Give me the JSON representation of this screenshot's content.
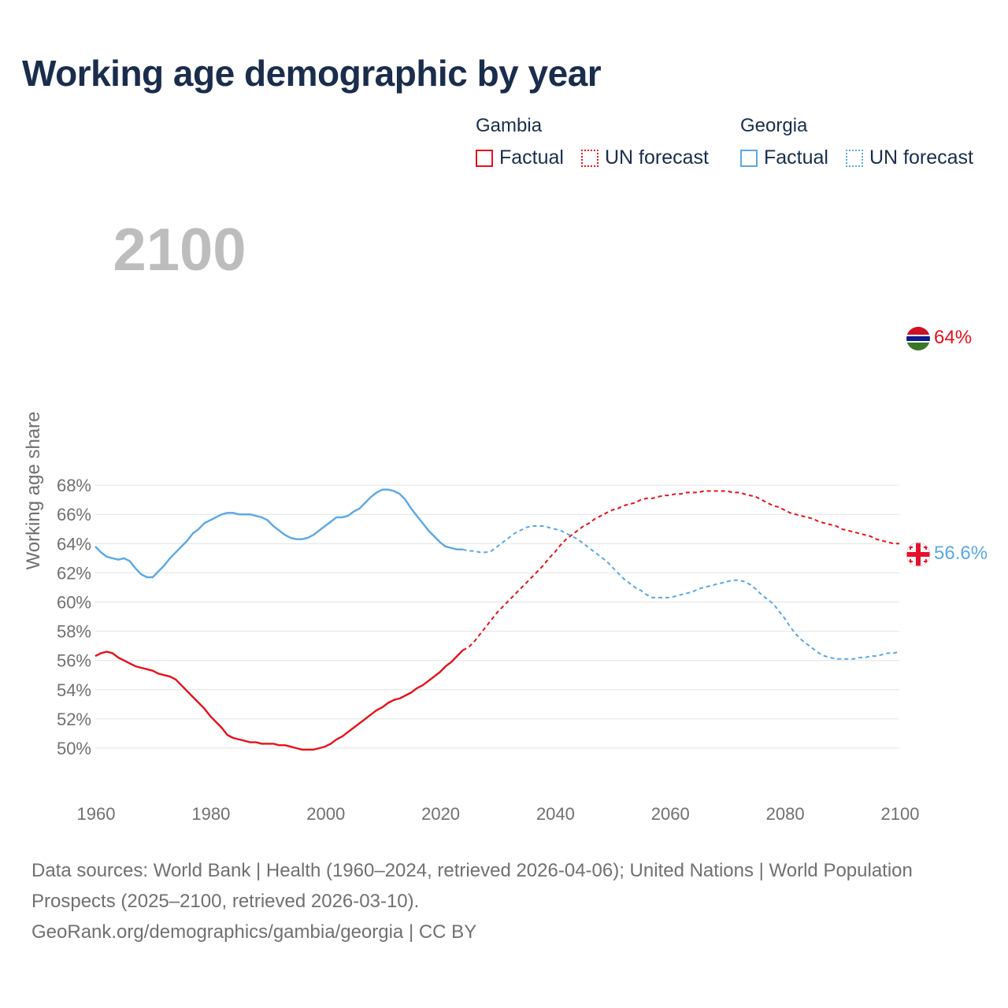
{
  "title": "Working age demographic by year",
  "legend": {
    "gambia": {
      "name": "Gambia",
      "factual": "Factual",
      "forecast": "UN forecast"
    },
    "georgia": {
      "name": "Georgia",
      "factual": "Factual",
      "forecast": "UN forecast"
    }
  },
  "colors": {
    "gambia": "#e8101a",
    "georgia": "#5aa8e6",
    "grid": "#e4e4e4",
    "axis_text": "#707070",
    "year_watermark": "#bdbdbd"
  },
  "year_watermark": "2100",
  "end_labels": {
    "gambia": "64%",
    "georgia": "56.6%"
  },
  "sources": {
    "line1": "Data sources: World Bank | Health (1960–2024, retrieved 2026-04-06); United Nations | World Population Prospects (2025–2100, retrieved 2026-03-10).",
    "line2": "GeoRank.org/demographics/gambia/georgia | CC BY"
  },
  "chart_data": {
    "type": "line",
    "title": "Working age demographic by year",
    "xlabel": "",
    "ylabel": "Working age share",
    "xlim": [
      1960,
      2100
    ],
    "ylim": [
      49,
      68
    ],
    "x_ticks": [
      1960,
      1980,
      2000,
      2020,
      2040,
      2060,
      2080,
      2100
    ],
    "y_ticks": [
      50,
      52,
      54,
      56,
      58,
      60,
      62,
      64,
      66,
      68
    ],
    "y_tick_labels": [
      "50%",
      "52%",
      "54%",
      "56%",
      "58%",
      "60%",
      "62%",
      "64%",
      "66%",
      "68%"
    ],
    "x_tick_labels": [
      "1960",
      "1980",
      "2000",
      "2020",
      "2040",
      "2060",
      "2080",
      "2100"
    ],
    "grid": true,
    "series": [
      {
        "name": "Gambia",
        "kind": "Factual",
        "color": "#e8101a",
        "dashed": false,
        "points": [
          [
            1960,
            56.3
          ],
          [
            1961,
            56.5
          ],
          [
            1962,
            56.6
          ],
          [
            1963,
            56.5
          ],
          [
            1964,
            56.2
          ],
          [
            1965,
            56.0
          ],
          [
            1966,
            55.8
          ],
          [
            1967,
            55.6
          ],
          [
            1968,
            55.5
          ],
          [
            1969,
            55.4
          ],
          [
            1970,
            55.3
          ],
          [
            1971,
            55.1
          ],
          [
            1972,
            55.0
          ],
          [
            1973,
            54.9
          ],
          [
            1974,
            54.7
          ],
          [
            1975,
            54.3
          ],
          [
            1976,
            53.9
          ],
          [
            1977,
            53.5
          ],
          [
            1978,
            53.1
          ],
          [
            1979,
            52.7
          ],
          [
            1980,
            52.2
          ],
          [
            1981,
            51.8
          ],
          [
            1982,
            51.4
          ],
          [
            1983,
            50.9
          ],
          [
            1984,
            50.7
          ],
          [
            1985,
            50.6
          ],
          [
            1986,
            50.5
          ],
          [
            1987,
            50.4
          ],
          [
            1988,
            50.4
          ],
          [
            1989,
            50.3
          ],
          [
            1990,
            50.3
          ],
          [
            1991,
            50.3
          ],
          [
            1992,
            50.2
          ],
          [
            1993,
            50.2
          ],
          [
            1994,
            50.1
          ],
          [
            1995,
            50.0
          ],
          [
            1996,
            49.9
          ],
          [
            1997,
            49.9
          ],
          [
            1998,
            49.9
          ],
          [
            1999,
            50.0
          ],
          [
            2000,
            50.1
          ],
          [
            2001,
            50.3
          ],
          [
            2002,
            50.6
          ],
          [
            2003,
            50.8
          ],
          [
            2004,
            51.1
          ],
          [
            2005,
            51.4
          ],
          [
            2006,
            51.7
          ],
          [
            2007,
            52.0
          ],
          [
            2008,
            52.3
          ],
          [
            2009,
            52.6
          ],
          [
            2010,
            52.8
          ],
          [
            2011,
            53.1
          ],
          [
            2012,
            53.3
          ],
          [
            2013,
            53.4
          ],
          [
            2014,
            53.6
          ],
          [
            2015,
            53.8
          ],
          [
            2016,
            54.1
          ],
          [
            2017,
            54.3
          ],
          [
            2018,
            54.6
          ],
          [
            2019,
            54.9
          ],
          [
            2020,
            55.2
          ],
          [
            2021,
            55.6
          ],
          [
            2022,
            55.9
          ],
          [
            2023,
            56.3
          ],
          [
            2024,
            56.7
          ]
        ]
      },
      {
        "name": "Gambia",
        "kind": "UN forecast",
        "color": "#e8101a",
        "dashed": true,
        "points": [
          [
            2024,
            56.7
          ],
          [
            2025,
            56.9
          ],
          [
            2026,
            57.3
          ],
          [
            2027,
            57.8
          ],
          [
            2028,
            58.3
          ],
          [
            2029,
            58.8
          ],
          [
            2030,
            59.3
          ],
          [
            2031,
            59.7
          ],
          [
            2032,
            60.1
          ],
          [
            2033,
            60.5
          ],
          [
            2034,
            60.9
          ],
          [
            2035,
            61.3
          ],
          [
            2036,
            61.7
          ],
          [
            2037,
            62.1
          ],
          [
            2038,
            62.5
          ],
          [
            2039,
            63.0
          ],
          [
            2040,
            63.4
          ],
          [
            2041,
            63.9
          ],
          [
            2042,
            64.3
          ],
          [
            2043,
            64.6
          ],
          [
            2044,
            64.9
          ],
          [
            2045,
            65.2
          ],
          [
            2046,
            65.4
          ],
          [
            2047,
            65.7
          ],
          [
            2048,
            65.9
          ],
          [
            2049,
            66.1
          ],
          [
            2050,
            66.3
          ],
          [
            2051,
            66.4
          ],
          [
            2052,
            66.6
          ],
          [
            2053,
            66.7
          ],
          [
            2054,
            66.8
          ],
          [
            2055,
            67.0
          ],
          [
            2056,
            67.1
          ],
          [
            2057,
            67.1
          ],
          [
            2058,
            67.2
          ],
          [
            2059,
            67.3
          ],
          [
            2060,
            67.3
          ],
          [
            2061,
            67.4
          ],
          [
            2062,
            67.4
          ],
          [
            2063,
            67.5
          ],
          [
            2064,
            67.5
          ],
          [
            2065,
            67.5
          ],
          [
            2066,
            67.6
          ],
          [
            2067,
            67.6
          ],
          [
            2068,
            67.6
          ],
          [
            2069,
            67.6
          ],
          [
            2070,
            67.6
          ],
          [
            2071,
            67.5
          ],
          [
            2072,
            67.5
          ],
          [
            2073,
            67.4
          ],
          [
            2074,
            67.3
          ],
          [
            2075,
            67.2
          ],
          [
            2076,
            67.0
          ],
          [
            2077,
            66.8
          ],
          [
            2078,
            66.6
          ],
          [
            2079,
            66.5
          ],
          [
            2080,
            66.3
          ],
          [
            2081,
            66.1
          ],
          [
            2082,
            66.0
          ],
          [
            2083,
            65.9
          ],
          [
            2084,
            65.8
          ],
          [
            2085,
            65.7
          ],
          [
            2086,
            65.5
          ],
          [
            2087,
            65.4
          ],
          [
            2088,
            65.3
          ],
          [
            2089,
            65.2
          ],
          [
            2090,
            65.0
          ],
          [
            2091,
            64.9
          ],
          [
            2092,
            64.8
          ],
          [
            2093,
            64.7
          ],
          [
            2094,
            64.6
          ],
          [
            2095,
            64.5
          ],
          [
            2096,
            64.3
          ],
          [
            2097,
            64.2
          ],
          [
            2098,
            64.1
          ],
          [
            2099,
            64.0
          ],
          [
            2100,
            64.0
          ]
        ]
      },
      {
        "name": "Georgia",
        "kind": "Factual",
        "color": "#5aa8e6",
        "dashed": false,
        "points": [
          [
            1960,
            63.8
          ],
          [
            1961,
            63.4
          ],
          [
            1962,
            63.1
          ],
          [
            1963,
            63.0
          ],
          [
            1964,
            62.9
          ],
          [
            1965,
            63.0
          ],
          [
            1966,
            62.8
          ],
          [
            1967,
            62.3
          ],
          [
            1968,
            61.9
          ],
          [
            1969,
            61.7
          ],
          [
            1970,
            61.7
          ],
          [
            1971,
            62.1
          ],
          [
            1972,
            62.5
          ],
          [
            1973,
            63.0
          ],
          [
            1974,
            63.4
          ],
          [
            1975,
            63.8
          ],
          [
            1976,
            64.2
          ],
          [
            1977,
            64.7
          ],
          [
            1978,
            65.0
          ],
          [
            1979,
            65.4
          ],
          [
            1980,
            65.6
          ],
          [
            1981,
            65.8
          ],
          [
            1982,
            66.0
          ],
          [
            1983,
            66.1
          ],
          [
            1984,
            66.1
          ],
          [
            1985,
            66.0
          ],
          [
            1986,
            66.0
          ],
          [
            1987,
            66.0
          ],
          [
            1988,
            65.9
          ],
          [
            1989,
            65.8
          ],
          [
            1990,
            65.6
          ],
          [
            1991,
            65.2
          ],
          [
            1992,
            64.9
          ],
          [
            1993,
            64.6
          ],
          [
            1994,
            64.4
          ],
          [
            1995,
            64.3
          ],
          [
            1996,
            64.3
          ],
          [
            1997,
            64.4
          ],
          [
            1998,
            64.6
          ],
          [
            1999,
            64.9
          ],
          [
            2000,
            65.2
          ],
          [
            2001,
            65.5
          ],
          [
            2002,
            65.8
          ],
          [
            2003,
            65.8
          ],
          [
            2004,
            65.9
          ],
          [
            2005,
            66.2
          ],
          [
            2006,
            66.4
          ],
          [
            2007,
            66.8
          ],
          [
            2008,
            67.2
          ],
          [
            2009,
            67.5
          ],
          [
            2010,
            67.7
          ],
          [
            2011,
            67.7
          ],
          [
            2012,
            67.6
          ],
          [
            2013,
            67.4
          ],
          [
            2014,
            67.0
          ],
          [
            2015,
            66.4
          ],
          [
            2016,
            65.9
          ],
          [
            2017,
            65.4
          ],
          [
            2018,
            64.9
          ],
          [
            2019,
            64.5
          ],
          [
            2020,
            64.1
          ],
          [
            2021,
            63.8
          ],
          [
            2022,
            63.7
          ],
          [
            2023,
            63.6
          ],
          [
            2024,
            63.6
          ]
        ]
      },
      {
        "name": "Georgia",
        "kind": "UN forecast",
        "color": "#5aa8e6",
        "dashed": true,
        "points": [
          [
            2024,
            63.6
          ],
          [
            2025,
            63.5
          ],
          [
            2026,
            63.5
          ],
          [
            2027,
            63.4
          ],
          [
            2028,
            63.4
          ],
          [
            2029,
            63.5
          ],
          [
            2030,
            63.8
          ],
          [
            2031,
            64.1
          ],
          [
            2032,
            64.4
          ],
          [
            2033,
            64.7
          ],
          [
            2034,
            64.9
          ],
          [
            2035,
            65.1
          ],
          [
            2036,
            65.2
          ],
          [
            2037,
            65.2
          ],
          [
            2038,
            65.2
          ],
          [
            2039,
            65.1
          ],
          [
            2040,
            65.0
          ],
          [
            2041,
            64.9
          ],
          [
            2042,
            64.7
          ],
          [
            2043,
            64.5
          ],
          [
            2044,
            64.3
          ],
          [
            2045,
            64.0
          ],
          [
            2046,
            63.7
          ],
          [
            2047,
            63.4
          ],
          [
            2048,
            63.1
          ],
          [
            2049,
            62.8
          ],
          [
            2050,
            62.4
          ],
          [
            2051,
            62.0
          ],
          [
            2052,
            61.6
          ],
          [
            2053,
            61.3
          ],
          [
            2054,
            61.0
          ],
          [
            2055,
            60.8
          ],
          [
            2056,
            60.5
          ],
          [
            2057,
            60.3
          ],
          [
            2058,
            60.3
          ],
          [
            2059,
            60.3
          ],
          [
            2060,
            60.3
          ],
          [
            2061,
            60.4
          ],
          [
            2062,
            60.5
          ],
          [
            2063,
            60.6
          ],
          [
            2064,
            60.7
          ],
          [
            2065,
            60.9
          ],
          [
            2066,
            61.0
          ],
          [
            2067,
            61.1
          ],
          [
            2068,
            61.2
          ],
          [
            2069,
            61.3
          ],
          [
            2070,
            61.4
          ],
          [
            2071,
            61.5
          ],
          [
            2072,
            61.5
          ],
          [
            2073,
            61.4
          ],
          [
            2074,
            61.2
          ],
          [
            2075,
            60.9
          ],
          [
            2076,
            60.5
          ],
          [
            2077,
            60.2
          ],
          [
            2078,
            59.9
          ],
          [
            2079,
            59.4
          ],
          [
            2080,
            58.9
          ],
          [
            2081,
            58.3
          ],
          [
            2082,
            57.8
          ],
          [
            2083,
            57.4
          ],
          [
            2084,
            57.1
          ],
          [
            2085,
            56.8
          ],
          [
            2086,
            56.5
          ],
          [
            2087,
            56.3
          ],
          [
            2088,
            56.2
          ],
          [
            2089,
            56.1
          ],
          [
            2090,
            56.1
          ],
          [
            2091,
            56.1
          ],
          [
            2092,
            56.1
          ],
          [
            2093,
            56.2
          ],
          [
            2094,
            56.2
          ],
          [
            2095,
            56.3
          ],
          [
            2096,
            56.3
          ],
          [
            2097,
            56.4
          ],
          [
            2098,
            56.5
          ],
          [
            2099,
            56.5
          ],
          [
            2100,
            56.6
          ]
        ]
      }
    ]
  }
}
